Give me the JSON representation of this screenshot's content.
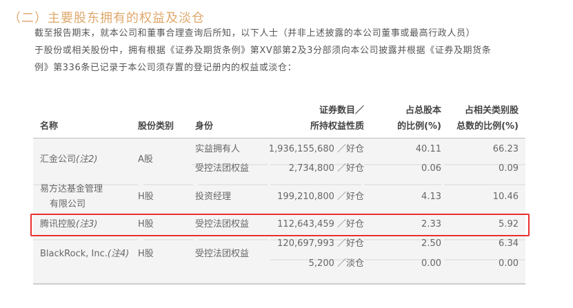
{
  "title": "（二）主要股东拥有的权益及淡仓",
  "paragraph": [
    "截至报告期末，就本公司和董事合理查询后所知，以下人士（并非上述披露的本公司董事或最高行政人员）",
    "于股份或相关股份中，拥有根据《证券及期货条例》第XV部第2及3分部须向本公司披露并根据《证券及期货条",
    "例》第336条已记录于本公司须存置的登记册内的权益或淡仓："
  ],
  "table": {
    "headers": {
      "name": "名称",
      "type": "股份类别",
      "identity": "身份",
      "count1": "证券数目／",
      "count2": "所持权益性质",
      "pct1a": "占总股本",
      "pct1b": "的比例(%)",
      "pct2a": "占相关类别股",
      "pct2b": "总数的比例(%)"
    },
    "rows": [
      {
        "name": "汇金公司",
        "note": "(注2)",
        "type": "A股",
        "sub": [
          {
            "identity": "实益拥有人",
            "count": "1,936,155,680 ／好仓",
            "pct_total": "40.11",
            "pct_class": "66.23"
          },
          {
            "identity": "受控法团权益",
            "count": "2,734,800 ／好仓",
            "pct_total": "0.06",
            "pct_class": "0.09"
          }
        ]
      },
      {
        "name": "易方达基金管理",
        "name2": "有限公司",
        "type": "H股",
        "sub": [
          {
            "identity": "投资经理",
            "count": "199,210,800 ／好仓",
            "pct_total": "4.13",
            "pct_class": "10.46"
          }
        ]
      },
      {
        "name": "腾讯控股",
        "note": "(注3)",
        "type": "H股",
        "highlighted": true,
        "sub": [
          {
            "identity": "受控法团权益",
            "count": "112,643,459 ／好仓",
            "pct_total": "2.33",
            "pct_class": "5.92"
          }
        ]
      },
      {
        "name": "BlackRock, Inc.",
        "note": "(注4)",
        "type": "H股",
        "identity": "受控法团权益",
        "sub": [
          {
            "count": "120,697,993 ／好仓",
            "pct_total": "2.50",
            "pct_class": "6.34"
          },
          {
            "count": "5,200 ／淡仓",
            "pct_total": "0.00",
            "pct_class": "0.00"
          }
        ]
      }
    ]
  },
  "colors": {
    "title": "#dfa86c",
    "highlight": "#e8302b",
    "table_bg": "#f4f4f4"
  }
}
